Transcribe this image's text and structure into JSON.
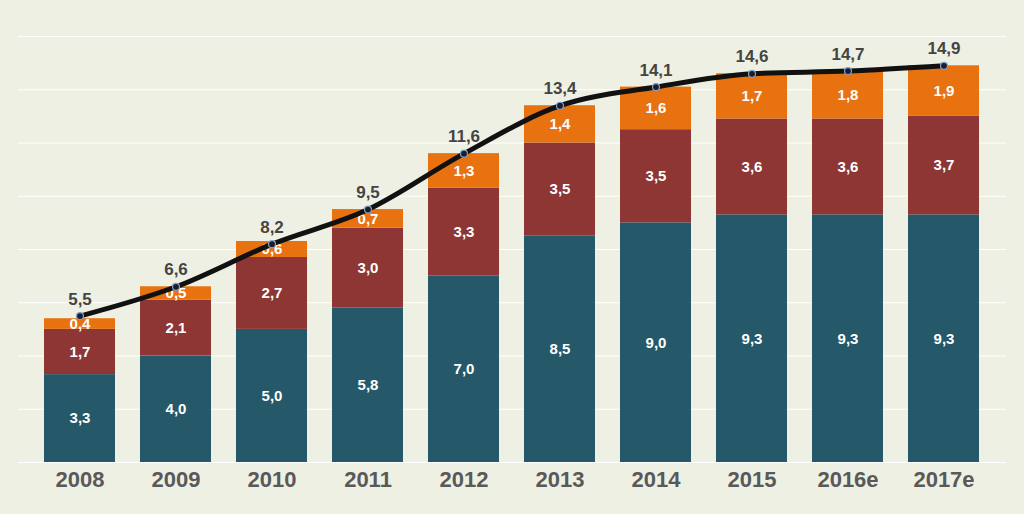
{
  "chart_data": {
    "type": "bar",
    "stacked": true,
    "data_labels": true,
    "grid": true,
    "tick_labels": "x",
    "categories": [
      "2008",
      "2009",
      "2010",
      "2011",
      "2012",
      "2013",
      "2014",
      "2015",
      "2016e",
      "2017e"
    ],
    "ylim": [
      0,
      16
    ],
    "yticks": [
      0,
      2,
      4,
      6,
      8,
      10,
      12,
      14,
      16
    ],
    "series": [
      {
        "type": "bar",
        "color": "#255868",
        "values": [
          3.3,
          4.0,
          5.0,
          5.8,
          7.0,
          8.5,
          9.0,
          9.3,
          9.3,
          9.3
        ],
        "value_labels": [
          "3,3",
          "4,0",
          "5,0",
          "5,8",
          "7,0",
          "8,5",
          "9,0",
          "9,3",
          "9,3",
          "9,3"
        ]
      },
      {
        "type": "bar",
        "color": "#8e3634",
        "values": [
          1.7,
          2.1,
          2.7,
          3.0,
          3.3,
          3.5,
          3.5,
          3.6,
          3.6,
          3.7
        ],
        "value_labels": [
          "1,7",
          "2,1",
          "2,7",
          "3,0",
          "3,3",
          "3,5",
          "3,5",
          "3,6",
          "3,6",
          "3,7"
        ]
      },
      {
        "type": "bar",
        "color": "#e8720f",
        "values": [
          0.4,
          0.5,
          0.6,
          0.7,
          1.3,
          1.4,
          1.6,
          1.7,
          1.8,
          1.9
        ],
        "value_labels": [
          "0,4",
          "0,5",
          "0,6",
          "0,7",
          "1,3",
          "1,4",
          "1,6",
          "1,7",
          "1,8",
          "1,9"
        ]
      },
      {
        "type": "line",
        "color": "#111111",
        "marker": "circle",
        "line_style": "solid",
        "values": [
          5.5,
          6.6,
          8.2,
          9.5,
          11.6,
          13.4,
          14.1,
          14.6,
          14.7,
          14.9
        ],
        "value_labels": [
          "5,5",
          "6,6",
          "8,2",
          "9,5",
          "11,6",
          "13,4",
          "14,1",
          "14,6",
          "14,7",
          "14,9"
        ]
      }
    ]
  }
}
